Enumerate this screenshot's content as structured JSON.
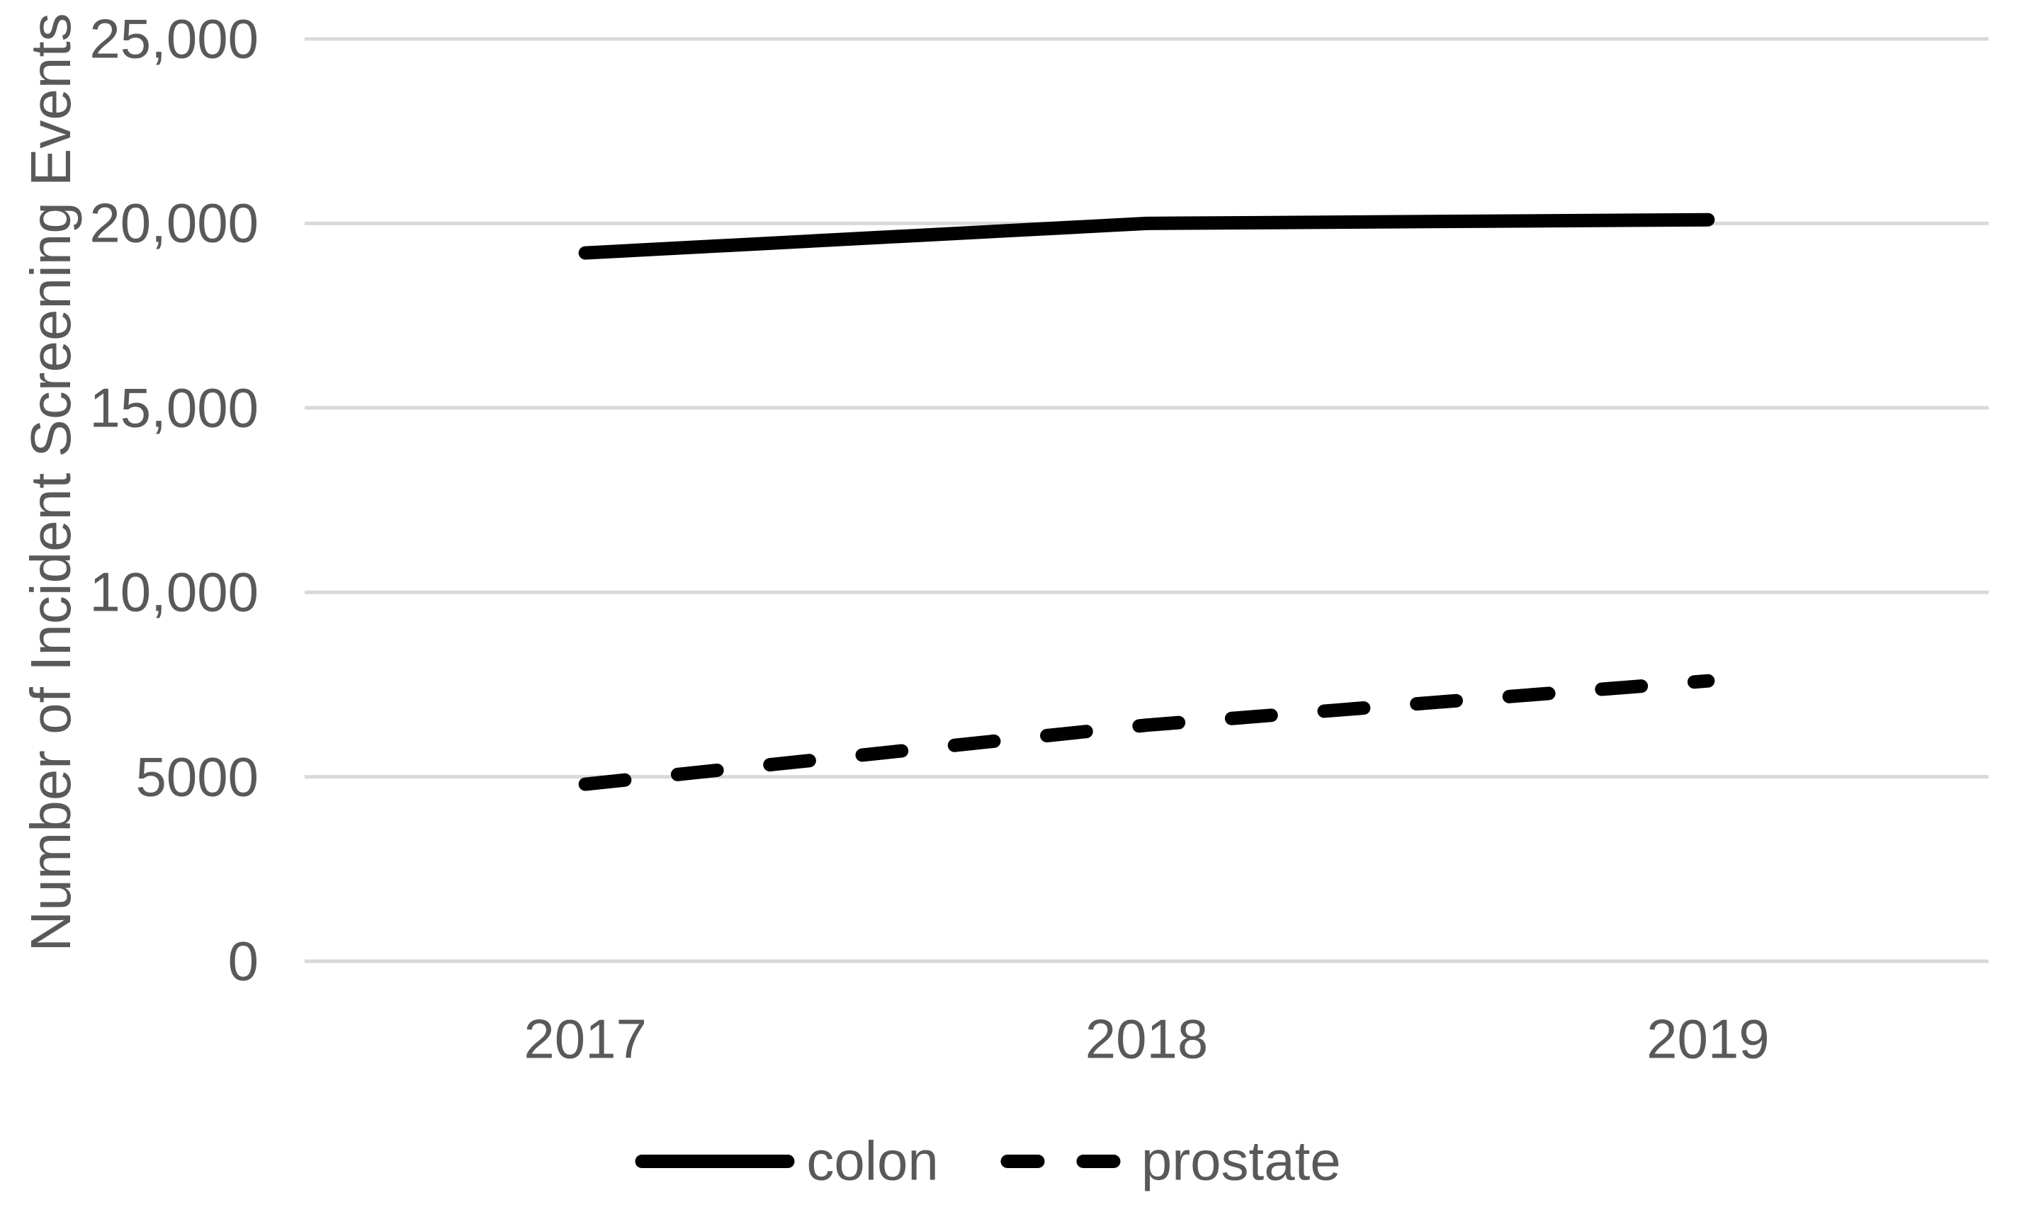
{
  "colors": {
    "background": "#FFFFFF",
    "text": "#595959",
    "gridline": "#D9D9D9",
    "series_line": "#000000"
  },
  "chart_data": {
    "type": "line",
    "title": "",
    "xlabel": "",
    "ylabel": "Number of Incident Screening Events",
    "x": [
      2017,
      2018,
      2019
    ],
    "x_tick_labels": [
      "2017",
      "2018",
      "2019"
    ],
    "y_ticks": [
      0,
      5000,
      10000,
      15000,
      20000,
      25000
    ],
    "y_tick_labels": [
      "0",
      "5000",
      "10,000",
      "15,000",
      "20,000",
      "25,000"
    ],
    "ylim": [
      0,
      25000
    ],
    "grid": "horizontal",
    "legend_position": "bottom",
    "series": [
      {
        "name": "colon",
        "style": "solid",
        "color": "#000000",
        "values": [
          19200,
          20000,
          20100
        ]
      },
      {
        "name": "prostate",
        "style": "dashed",
        "color": "#000000",
        "values": [
          4800,
          6400,
          7600
        ]
      }
    ]
  }
}
